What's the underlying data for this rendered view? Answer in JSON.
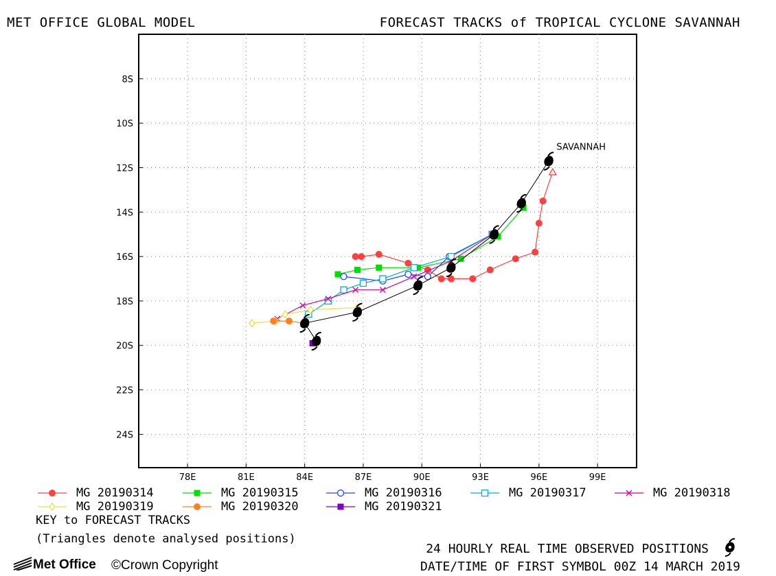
{
  "header": {
    "left": "MET OFFICE GLOBAL MODEL",
    "right": "FORECAST TRACKS of TROPICAL CYCLONE SAVANNAH"
  },
  "map": {
    "lon_range": [
      75.5,
      101
    ],
    "lat_range": [
      -25.5,
      -6
    ],
    "lon_ticks": [
      "78E",
      "81E",
      "84E",
      "87E",
      "90E",
      "93E",
      "96E",
      "99E"
    ],
    "lon_tick_values": [
      78,
      81,
      84,
      87,
      90,
      93,
      96,
      99
    ],
    "lat_ticks": [
      "8S",
      "10S",
      "12S",
      "14S",
      "16S",
      "18S",
      "20S",
      "22S",
      "24S"
    ],
    "lat_tick_values": [
      -8,
      -10,
      -12,
      -14,
      -16,
      -18,
      -20,
      -22,
      -24
    ],
    "grid": "dotted",
    "storm_label": "SAVANNAH",
    "storm_label_position": {
      "lon": 96.9,
      "lat": -11.2
    }
  },
  "chart_data": {
    "type": "scatter",
    "observed": {
      "symbol": "cyclone-icon",
      "points": [
        {
          "lon": 96.5,
          "lat": -11.7
        },
        {
          "lon": 95.1,
          "lat": -13.6
        },
        {
          "lon": 93.7,
          "lat": -15.0
        },
        {
          "lon": 91.5,
          "lat": -16.5
        },
        {
          "lon": 89.8,
          "lat": -17.3
        },
        {
          "lon": 86.7,
          "lat": -18.5
        },
        {
          "lon": 84.0,
          "lat": -19.0
        },
        {
          "lon": 84.6,
          "lat": -19.8
        }
      ]
    },
    "series": [
      {
        "name": "MG 20190314",
        "color": "#ff4040",
        "marker": "filled-circle",
        "points": [
          [
            96.7,
            -12.2
          ],
          [
            96.2,
            -13.5
          ],
          [
            96.0,
            -14.5
          ],
          [
            95.8,
            -15.8
          ],
          [
            94.8,
            -16.1
          ],
          [
            93.5,
            -16.6
          ],
          [
            92.6,
            -17.0
          ],
          [
            91.5,
            -17.0
          ],
          [
            91.0,
            -17.0
          ],
          [
            90.3,
            -16.6
          ],
          [
            89.3,
            -16.3
          ],
          [
            87.8,
            -15.9
          ],
          [
            86.9,
            -16.0
          ],
          [
            86.6,
            -16.0
          ]
        ]
      },
      {
        "name": "MG 20190315",
        "color": "#00e000",
        "marker": "filled-square",
        "points": [
          [
            95.2,
            -13.8
          ],
          [
            93.9,
            -15.1
          ],
          [
            92.0,
            -16.1
          ],
          [
            89.8,
            -16.5
          ],
          [
            87.8,
            -16.5
          ],
          [
            86.7,
            -16.6
          ],
          [
            85.7,
            -16.8
          ]
        ]
      },
      {
        "name": "MG 20190316",
        "color": "#2040ff",
        "marker": "open-circle",
        "points": [
          [
            93.6,
            -15.0
          ],
          [
            91.4,
            -16.0
          ],
          [
            90.3,
            -16.9
          ],
          [
            89.3,
            -16.8
          ],
          [
            88.0,
            -17.1
          ],
          [
            86.0,
            -16.9
          ]
        ]
      },
      {
        "name": "MG 20190317",
        "color": "#00b0d0",
        "marker": "open-square",
        "points": [
          [
            93.6,
            -15.0
          ],
          [
            91.5,
            -16.0
          ],
          [
            89.6,
            -16.5
          ],
          [
            88.0,
            -17.0
          ],
          [
            87.0,
            -17.2
          ],
          [
            86.0,
            -17.5
          ],
          [
            85.2,
            -18.0
          ],
          [
            84.2,
            -18.6
          ]
        ]
      },
      {
        "name": "MG 20190318",
        "color": "#d000a0",
        "marker": "cross",
        "points": [
          [
            93.6,
            -15.0
          ],
          [
            91.5,
            -16.2
          ],
          [
            89.6,
            -16.9
          ],
          [
            88.0,
            -17.5
          ],
          [
            86.6,
            -17.5
          ],
          [
            85.2,
            -17.9
          ],
          [
            83.9,
            -18.2
          ],
          [
            82.6,
            -18.8
          ]
        ]
      },
      {
        "name": "MG 20190319",
        "color": "#e8e040",
        "marker": "open-diamond",
        "points": [
          [
            86.7,
            -18.3
          ],
          [
            84.3,
            -18.4
          ],
          [
            83.0,
            -18.6
          ],
          [
            82.5,
            -18.9
          ],
          [
            81.3,
            -19.0
          ]
        ]
      },
      {
        "name": "MG 20190320",
        "color": "#ff8020",
        "marker": "filled-circle",
        "points": [
          [
            84.0,
            -19.0
          ],
          [
            83.2,
            -18.9
          ],
          [
            82.4,
            -18.9
          ]
        ]
      },
      {
        "name": "MG 20190321",
        "color": "#8000c0",
        "marker": "filled-square",
        "points": [
          [
            84.6,
            -19.8
          ],
          [
            84.4,
            -19.9
          ]
        ]
      }
    ]
  },
  "notes": {
    "key_title": "KEY to FORECAST TRACKS",
    "triangles_note": "(Triangles denote analysed positions)",
    "observed_note": "24 HOURLY REAL TIME OBSERVED POSITIONS",
    "first_symbol": "DATE/TIME OF FIRST SYMBOL 00Z 14 MARCH 2019"
  },
  "footer": {
    "logo": "Met Office",
    "copyright": "©Crown Copyright"
  }
}
